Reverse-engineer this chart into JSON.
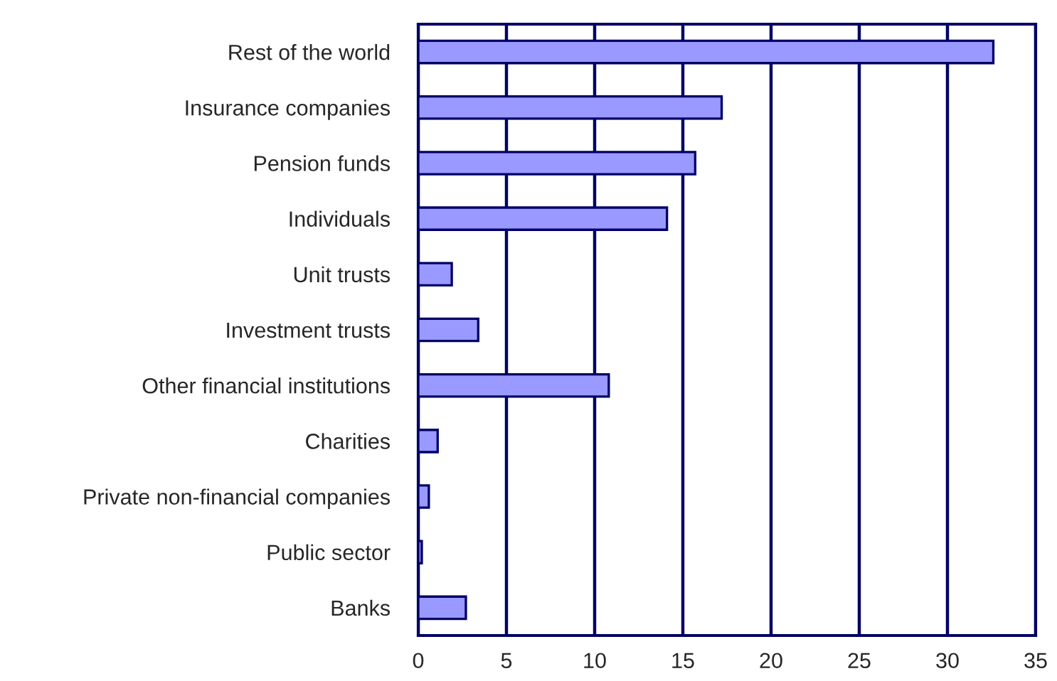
{
  "chart_data": {
    "type": "bar",
    "orientation": "horizontal",
    "categories": [
      "Rest of the world",
      "Insurance companies",
      "Pension funds",
      "Individuals",
      "Unit trusts",
      "Investment trusts",
      "Other financial institutions",
      "Charities",
      "Private non-financial companies",
      "Public sector",
      "Banks"
    ],
    "values": [
      32.6,
      17.2,
      15.7,
      14.1,
      1.9,
      3.4,
      10.8,
      1.1,
      0.6,
      0.2,
      2.7
    ],
    "color": "#9999ff",
    "xlim": [
      0,
      35
    ],
    "xticks": [
      0,
      5,
      10,
      15,
      20,
      25,
      30,
      35
    ],
    "grid": "x"
  }
}
